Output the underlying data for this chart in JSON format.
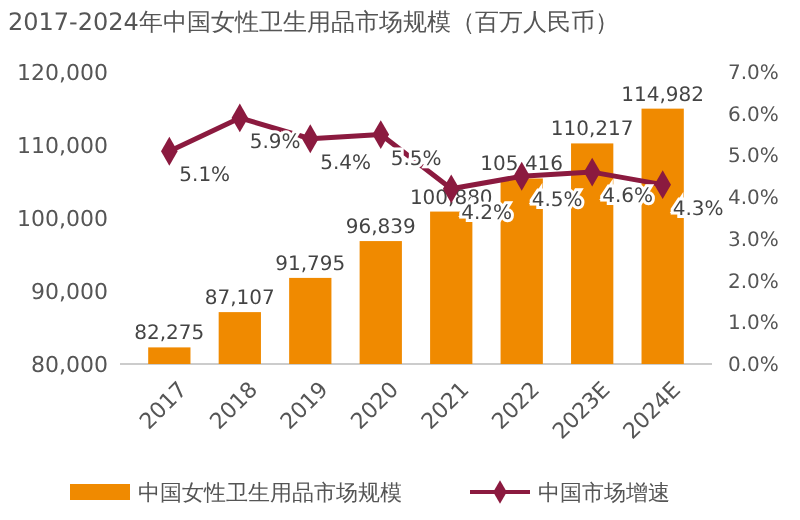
{
  "chart_data": {
    "type": "bar",
    "title": "2017-2024年中国女性卫生用品市场规模（百万人民币）",
    "categories": [
      "2017",
      "2018",
      "2019",
      "2020",
      "2021",
      "2022",
      "2023E",
      "2024E"
    ],
    "series": [
      {
        "name": "中国女性卫生用品市场规模",
        "color": "#f08a00",
        "values": [
          82275,
          87107,
          91795,
          96839,
          100880,
          105416,
          110217,
          114982
        ],
        "value_labels": [
          "82,275",
          "87,107",
          "91,795",
          "96,839",
          "100,880",
          "105,416",
          "110,217",
          "114,982"
        ]
      },
      {
        "name": "中国市场增速",
        "type": "line",
        "axis": "y2",
        "color": "#8b1a3f",
        "marker": "diamond",
        "values": [
          5.1,
          5.9,
          5.4,
          5.5,
          4.2,
          4.5,
          4.6,
          4.3
        ],
        "value_labels": [
          "5.1%",
          "5.9%",
          "5.4%",
          "5.5%",
          "4.2%",
          "4.5%",
          "4.6%",
          "4.3%"
        ]
      }
    ],
    "ylim": [
      80000,
      120000
    ],
    "yticks": [
      {
        "value": 80000,
        "label": "80,000"
      },
      {
        "value": 90000,
        "label": "90,000"
      },
      {
        "value": 100000,
        "label": "100,000"
      },
      {
        "value": 110000,
        "label": "110,000"
      },
      {
        "value": 120000,
        "label": "120,000"
      }
    ],
    "y2lim": [
      0,
      7
    ],
    "y2ticks": [
      {
        "value": 0,
        "label": "0.0%"
      },
      {
        "value": 1,
        "label": "1.0%"
      },
      {
        "value": 2,
        "label": "2.0%"
      },
      {
        "value": 3,
        "label": "3.0%"
      },
      {
        "value": 4,
        "label": "4.0%"
      },
      {
        "value": 5,
        "label": "5.0%"
      },
      {
        "value": 6,
        "label": "6.0%"
      },
      {
        "value": 7,
        "label": "7.0%"
      }
    ],
    "legend": "bottom",
    "grid": false
  }
}
